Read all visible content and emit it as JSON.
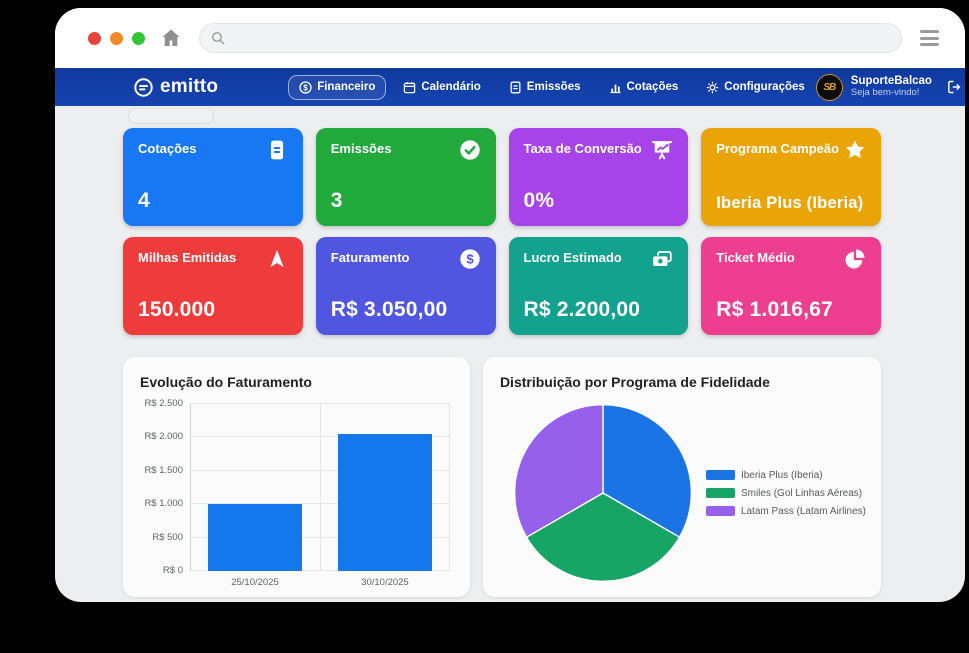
{
  "browser": {
    "traffic_lights": {
      "close": "#e8453c",
      "minimize": "#f08a24",
      "maximize": "#33c435"
    },
    "search": {
      "value": "",
      "placeholder": ""
    }
  },
  "navbar": {
    "brand": "emitto",
    "items": [
      {
        "label": "Financeiro",
        "active": true
      },
      {
        "label": "Calendário",
        "active": false
      },
      {
        "label": "Emissões",
        "active": false
      },
      {
        "label": "Cotações",
        "active": false
      },
      {
        "label": "Configurações",
        "active": false
      }
    ],
    "user": {
      "name": "SuporteBalcao",
      "greeting": "Seja bem-vindo!",
      "avatar_monogram": "SB"
    }
  },
  "stats": [
    {
      "label": "Cotações",
      "value": "4",
      "color": "#1877f2",
      "icon": "file-icon"
    },
    {
      "label": "Emissões",
      "value": "3",
      "color": "#21a93c",
      "icon": "check-circle-icon"
    },
    {
      "label": "Taxa de Conversão",
      "value": "0%",
      "color": "#a644ea",
      "icon": "presentation-chart-icon"
    },
    {
      "label": "Programa Campeão",
      "value": "Iberia Plus (Iberia)",
      "color": "#e9a408",
      "icon": "star-icon"
    },
    {
      "label": "Milhas Emitidas",
      "value": "150.000",
      "color": "#ee3c3c",
      "icon": "plane-icon"
    },
    {
      "label": "Faturamento",
      "value": "R$ 3.050,00",
      "color": "#5056e0",
      "icon": "dollar-circle-icon"
    },
    {
      "label": "Lucro Estimado",
      "value": "R$ 2.200,00",
      "color": "#13a28e",
      "icon": "cash-icon"
    },
    {
      "label": "Ticket Médio",
      "value": "R$ 1.016,67",
      "color": "#ed3e8f",
      "icon": "pie-chart-icon"
    }
  ],
  "chart_data": [
    {
      "type": "bar",
      "title": "Evolução do Faturamento",
      "categories": [
        "25/10/2025",
        "30/10/2025"
      ],
      "values": [
        1000,
        2050
      ],
      "ylim": [
        0,
        2500
      ],
      "yticks": [
        "R$ 2.500",
        "R$ 2.000",
        "R$ 1.500",
        "R$ 1.000",
        "R$ 500",
        "R$ 0"
      ],
      "bar_color": "#1478ec",
      "grid": true,
      "xlabel": "",
      "ylabel": ""
    },
    {
      "type": "pie",
      "title": "Distribuição por Programa de Fidelidade",
      "labels": [
        "Iberia Plus (Iberia)",
        "Smiles (Gol Linhas Aéreas)",
        "Latam Pass (Latam Airlines)"
      ],
      "values": [
        33.3,
        33.3,
        33.3
      ],
      "colors": [
        "#1b74e4",
        "#17a566",
        "#9760ea"
      ],
      "legend_position": "right"
    }
  ]
}
